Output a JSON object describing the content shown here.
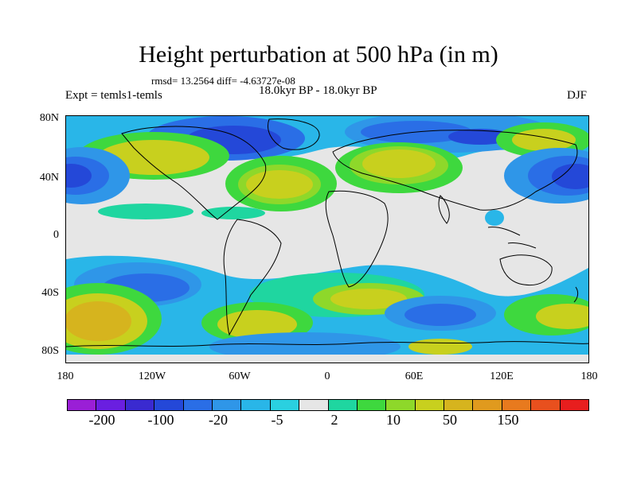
{
  "header": {
    "title": "Height perturbation at 500 hPa (in m)",
    "stats": "rmsd= 13.2564 diff= -4.63727e-08",
    "experiment": "Expt = temls1-temls",
    "period": "18.0kyr BP - 18.0kyr BP",
    "season": "DJF"
  },
  "axes": {
    "lat_labels": [
      "80N",
      "40N",
      "0",
      "40S",
      "80S"
    ],
    "lon_labels": [
      "180",
      "120W",
      "60W",
      "0",
      "60E",
      "120E",
      "180"
    ]
  },
  "colorbar": {
    "colors": [
      "#9a1fd6",
      "#6a1fe0",
      "#3a2ad0",
      "#2448d8",
      "#2a6ee6",
      "#2f96e8",
      "#29b6e8",
      "#2ad0e0",
      "#e6e6e6",
      "#1fd6a0",
      "#3ed83e",
      "#8ed82a",
      "#c8d01e",
      "#d6b41e",
      "#e09a1e",
      "#e87a1e",
      "#e8501e",
      "#e81e1e"
    ],
    "tick_labels": [
      "-200",
      "-100",
      "-20",
      "-5",
      "2",
      "10",
      "50",
      "150"
    ]
  }
}
